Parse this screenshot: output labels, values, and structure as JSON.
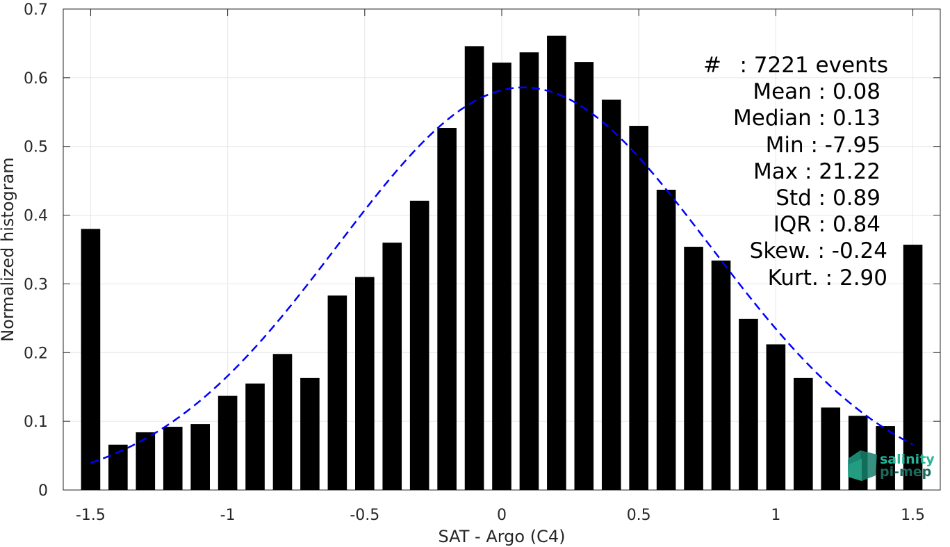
{
  "chart_data": {
    "type": "bar",
    "xlabel": "SAT - Argo (C4)",
    "ylabel": "Normalized histogram",
    "xlim": [
      -1.6,
      1.6
    ],
    "ylim": [
      0,
      0.7
    ],
    "grid": true,
    "xticks": [
      -1.5,
      -1,
      -0.5,
      0,
      0.5,
      1,
      1.5
    ],
    "xtick_labels": [
      "-1.5",
      "-1",
      "-0.5",
      "0",
      "0.5",
      "1",
      "1.5"
    ],
    "yticks": [
      0,
      0.1,
      0.2,
      0.3,
      0.4,
      0.5,
      0.6,
      0.7
    ],
    "ytick_labels": [
      "0",
      "0.1",
      "0.2",
      "0.3",
      "0.4",
      "0.5",
      "0.6",
      "0.7"
    ],
    "bar_color": "#000000",
    "bar_width": 0.07,
    "x": [
      -1.5,
      -1.4,
      -1.3,
      -1.2,
      -1.1,
      -1.0,
      -0.9,
      -0.8,
      -0.7,
      -0.6,
      -0.5,
      -0.4,
      -0.3,
      -0.2,
      -0.1,
      0.0,
      0.1,
      0.2,
      0.3,
      0.4,
      0.5,
      0.6,
      0.7,
      0.8,
      0.9,
      1.0,
      1.1,
      1.2,
      1.3,
      1.4,
      1.5
    ],
    "values": [
      0.38,
      0.066,
      0.084,
      0.092,
      0.096,
      0.137,
      0.155,
      0.198,
      0.163,
      0.283,
      0.31,
      0.36,
      0.421,
      0.527,
      0.646,
      0.622,
      0.637,
      0.661,
      0.623,
      0.568,
      0.53,
      0.437,
      0.354,
      0.334,
      0.249,
      0.212,
      0.163,
      0.12,
      0.108,
      0.093,
      0.357
    ],
    "fit_curve": {
      "style": "dashed",
      "color": "#0000ff",
      "mean": 0.08,
      "std": 0.68,
      "peak": 0.586,
      "x_range": [
        -1.5,
        1.5
      ]
    },
    "annotations": [
      {
        "label": "#",
        "value": ": 7221 events"
      },
      {
        "label": "Mean",
        "value": ": 0.08"
      },
      {
        "label": "Median",
        "value": ": 0.13"
      },
      {
        "label": "Min",
        "value": ": -7.95"
      },
      {
        "label": "Max",
        "value": ": 21.22"
      },
      {
        "label": "Std",
        "value": ": 0.89"
      },
      {
        "label": "IQR",
        "value": ": 0.84"
      },
      {
        "label": "Skew.",
        "value": ": -0.24"
      },
      {
        "label": "Kurt.",
        "value": ": 2.90"
      }
    ]
  },
  "logo": {
    "line1": "salinity",
    "line2": "pi-mep",
    "colors": {
      "line1": "#23b597",
      "line2": "#1a6b5d",
      "shape": "#1f9e85"
    },
    "icon": "cube-logo-icon"
  }
}
